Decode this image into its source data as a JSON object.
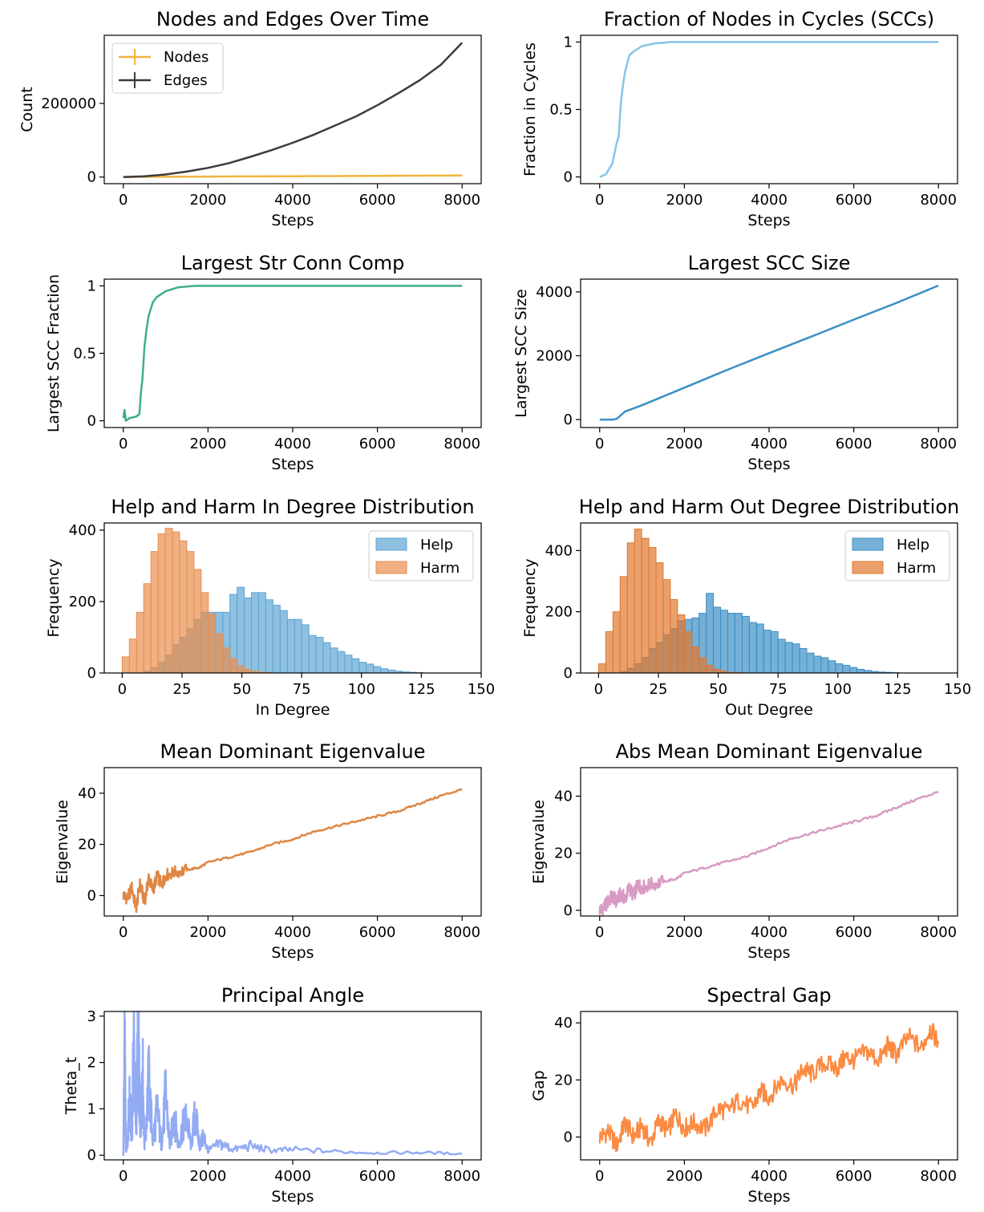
{
  "chart_data": [
    {
      "id": "nodes_edges",
      "type": "line",
      "title": "Nodes and Edges Over Time",
      "xlabel": "Steps",
      "ylabel": "Count",
      "xlim": [
        -450,
        8450
      ],
      "ylim": [
        -18000,
        385000
      ],
      "xticks": [
        0,
        2000,
        4000,
        6000,
        8000
      ],
      "yticks": [
        0,
        200000
      ],
      "legend": "upper-left",
      "series": [
        {
          "name": "Nodes",
          "color": "#f0b43c",
          "x": [
            0,
            1000,
            2000,
            3000,
            4000,
            5000,
            6000,
            7000,
            8000
          ],
          "y": [
            200,
            800,
            1300,
            1800,
            2300,
            2800,
            3300,
            3800,
            4300
          ]
        },
        {
          "name": "Edges",
          "color": "#3c3c3c",
          "x": [
            0,
            500,
            1000,
            1500,
            2000,
            2500,
            3000,
            3500,
            4000,
            4500,
            5000,
            5500,
            6000,
            6500,
            7000,
            7500,
            8000
          ],
          "y": [
            0,
            2000,
            7000,
            15000,
            25000,
            38000,
            55000,
            73000,
            93000,
            115000,
            140000,
            165000,
            195000,
            228000,
            263000,
            305000,
            365000
          ]
        }
      ]
    },
    {
      "id": "frac_cycles",
      "type": "line",
      "title": "Fraction of Nodes in Cycles (SCCs)",
      "xlabel": "Steps",
      "ylabel": "Fraction in Cycles",
      "xlim": [
        -450,
        8450
      ],
      "ylim": [
        -0.05,
        1.05
      ],
      "xticks": [
        0,
        2000,
        4000,
        6000,
        8000
      ],
      "yticks": [
        0.0,
        0.5,
        1.0
      ],
      "series": [
        {
          "name": "",
          "color": "#87c5e8",
          "x": [
            0,
            150,
            300,
            400,
            450,
            500,
            550,
            600,
            700,
            800,
            1000,
            1300,
            1700,
            2000,
            8000
          ],
          "y": [
            0,
            0.02,
            0.1,
            0.25,
            0.3,
            0.55,
            0.68,
            0.78,
            0.9,
            0.93,
            0.97,
            0.99,
            1.0,
            1.0,
            1.0
          ]
        }
      ]
    },
    {
      "id": "largest_scc_frac",
      "type": "line",
      "title": "Largest Str Conn Comp",
      "xlabel": "Steps",
      "ylabel": "Largest SCC Fraction",
      "xlim": [
        -450,
        8450
      ],
      "ylim": [
        -0.05,
        1.05
      ],
      "xticks": [
        0,
        2000,
        4000,
        6000,
        8000
      ],
      "yticks": [
        0.0,
        0.5,
        1.0
      ],
      "series": [
        {
          "name": "",
          "color": "#3fad8e",
          "x": [
            0,
            30,
            60,
            150,
            300,
            380,
            420,
            450,
            500,
            550,
            600,
            700,
            800,
            1000,
            1300,
            1700,
            2000,
            8000
          ],
          "y": [
            0.02,
            0.08,
            0.0,
            0.02,
            0.03,
            0.05,
            0.22,
            0.3,
            0.55,
            0.68,
            0.78,
            0.88,
            0.92,
            0.96,
            0.99,
            1.0,
            1.0,
            1.0
          ]
        }
      ]
    },
    {
      "id": "largest_scc_size",
      "type": "line",
      "title": "Largest SCC Size",
      "xlabel": "Steps",
      "ylabel": "Largest SCC Size",
      "xlim": [
        -450,
        8450
      ],
      "ylim": [
        -250,
        4400
      ],
      "xticks": [
        0,
        2000,
        4000,
        6000,
        8000
      ],
      "yticks": [
        0,
        2000,
        4000
      ],
      "series": [
        {
          "name": "",
          "color": "#3a8fc4",
          "x": [
            0,
            300,
            400,
            600,
            1000,
            2000,
            3000,
            4000,
            5000,
            6000,
            7000,
            8000
          ],
          "y": [
            0,
            0,
            20,
            250,
            450,
            1000,
            1550,
            2080,
            2600,
            3130,
            3650,
            4200
          ]
        }
      ]
    },
    {
      "id": "in_degree",
      "type": "bar",
      "title": "Help and Harm In Degree Distribution",
      "xlabel": "In Degree",
      "ylabel": "Frequency",
      "xlim": [
        -7.5,
        150
      ],
      "ylim": [
        0,
        420
      ],
      "xticks": [
        0,
        25,
        50,
        75,
        100,
        125,
        150
      ],
      "yticks": [
        0,
        200,
        400
      ],
      "legend": "upper-right",
      "bin_width": 3,
      "bin_start": 0,
      "series": [
        {
          "name": "Help",
          "color": "#5ea5d3",
          "values": [
            0,
            0,
            0,
            5,
            15,
            30,
            50,
            80,
            100,
            125,
            150,
            170,
            170,
            170,
            170,
            220,
            240,
            210,
            225,
            225,
            205,
            190,
            175,
            150,
            150,
            135,
            105,
            100,
            85,
            70,
            60,
            50,
            40,
            30,
            25,
            18,
            12,
            8,
            5,
            3,
            2,
            1,
            0,
            0,
            0,
            0,
            0,
            0,
            0,
            0
          ]
        },
        {
          "name": "Harm",
          "color": "#e88e4f",
          "values": [
            45,
            95,
            170,
            250,
            340,
            390,
            405,
            395,
            370,
            340,
            290,
            225,
            165,
            110,
            70,
            40,
            20,
            10,
            5,
            2,
            1,
            0,
            0,
            0,
            0,
            0,
            0,
            0,
            0,
            0,
            0,
            0,
            0,
            0,
            0,
            0,
            0,
            0,
            0,
            0,
            0,
            0,
            0,
            0,
            0,
            0,
            0,
            0,
            0,
            0
          ]
        }
      ]
    },
    {
      "id": "out_degree",
      "type": "bar",
      "title": "Help and Harm Out Degree Distribution",
      "xlabel": "Out Degree",
      "ylabel": "Frequency",
      "xlim": [
        -7.5,
        150
      ],
      "ylim": [
        0,
        490
      ],
      "xticks": [
        0,
        25,
        50,
        75,
        100,
        125,
        150
      ],
      "yticks": [
        0,
        200,
        400
      ],
      "legend": "upper-right",
      "bin_width": 3,
      "bin_start": 0,
      "series": [
        {
          "name": "Help",
          "color": "#3a8fc4",
          "values": [
            0,
            0,
            0,
            5,
            15,
            30,
            50,
            80,
            100,
            125,
            145,
            170,
            175,
            180,
            195,
            260,
            215,
            205,
            195,
            195,
            185,
            165,
            160,
            140,
            135,
            110,
            100,
            95,
            80,
            65,
            55,
            50,
            40,
            30,
            25,
            18,
            12,
            8,
            5,
            3,
            2,
            1,
            0,
            0,
            0,
            0,
            0,
            0,
            0,
            0
          ]
        },
        {
          "name": "Harm",
          "color": "#e0782e",
          "values": [
            30,
            135,
            200,
            315,
            425,
            470,
            440,
            410,
            360,
            305,
            240,
            190,
            135,
            85,
            50,
            25,
            12,
            5,
            2,
            1,
            0,
            0,
            0,
            0,
            0,
            0,
            0,
            0,
            0,
            0,
            0,
            0,
            0,
            0,
            0,
            0,
            0,
            0,
            0,
            0,
            0,
            0,
            0,
            0,
            0,
            0,
            0,
            0,
            0,
            0
          ]
        }
      ]
    },
    {
      "id": "mean_eig",
      "type": "line",
      "title": "Mean Dominant Eigenvalue",
      "xlabel": "Steps",
      "ylabel": "Eigenvalue",
      "xlim": [
        -450,
        8450
      ],
      "ylim": [
        -8,
        50
      ],
      "xticks": [
        0,
        2000,
        4000,
        6000,
        8000
      ],
      "yticks": [
        0,
        20,
        40
      ],
      "series": [
        {
          "name": "",
          "color": "#de8744",
          "x": [
            0,
            100,
            200,
            300,
            400,
            500,
            600,
            700,
            800,
            900,
            1000,
            1200,
            1500,
            1800,
            2000,
            2500,
            3000,
            3500,
            4000,
            4500,
            5000,
            5500,
            6000,
            6500,
            7000,
            7500,
            8000
          ],
          "y": [
            0,
            -1,
            3,
            -5,
            5,
            -3,
            7,
            2,
            8,
            4,
            8,
            9,
            10,
            11,
            13,
            15,
            17,
            20,
            22,
            25,
            27,
            29,
            31,
            33,
            36,
            39,
            41.5
          ]
        }
      ]
    },
    {
      "id": "abs_mean_eig",
      "type": "line",
      "title": "Abs Mean Dominant Eigenvalue",
      "xlabel": "Steps",
      "ylabel": "Eigenvalue",
      "xlim": [
        -450,
        8450
      ],
      "ylim": [
        -2,
        50
      ],
      "xticks": [
        0,
        2000,
        4000,
        6000,
        8000
      ],
      "yticks": [
        0,
        20,
        40
      ],
      "series": [
        {
          "name": "",
          "color": "#d89bc4",
          "x": [
            0,
            100,
            200,
            300,
            400,
            500,
            600,
            700,
            800,
            900,
            1000,
            1200,
            1500,
            1800,
            2000,
            2500,
            3000,
            3500,
            4000,
            4500,
            5000,
            5500,
            6000,
            6500,
            7000,
            7500,
            8000
          ],
          "y": [
            0,
            1,
            3,
            5,
            3,
            6,
            4,
            8,
            5,
            9,
            8,
            9,
            10,
            11,
            13,
            15,
            17,
            19,
            22,
            25,
            27,
            29,
            31,
            33,
            36,
            39,
            41.5
          ]
        }
      ]
    },
    {
      "id": "principal_angle",
      "type": "line",
      "title": "Principal Angle",
      "xlabel": "Steps",
      "ylabel": "Theta_t",
      "xlim": [
        -450,
        8450
      ],
      "ylim": [
        -0.1,
        3.1
      ],
      "xticks": [
        0,
        2000,
        4000,
        6000,
        8000
      ],
      "yticks": [
        0,
        1,
        2,
        3
      ],
      "series": [
        {
          "name": "",
          "color": "#93abf3",
          "x": [
            0,
            30,
            60,
            100,
            150,
            200,
            250,
            300,
            350,
            400,
            450,
            500,
            600,
            700,
            800,
            900,
            1000,
            1100,
            1200,
            1300,
            1400,
            1500,
            1600,
            1700,
            1800,
            1900,
            2000,
            2300,
            2600,
            3000,
            3500,
            4000,
            5000,
            6000,
            7000,
            8000
          ],
          "y": [
            0,
            2.55,
            0.1,
            0.3,
            1.2,
            0.4,
            2.4,
            0.5,
            2.85,
            0.3,
            2.0,
            0.2,
            1.6,
            0.3,
            1.0,
            0.2,
            1.3,
            0.2,
            0.9,
            0.2,
            0.6,
            0.8,
            0.2,
            0.9,
            0.2,
            0.4,
            0.1,
            0.25,
            0.12,
            0.2,
            0.1,
            0.12,
            0.08,
            0.05,
            0.06,
            0.03
          ]
        }
      ]
    },
    {
      "id": "spectral_gap",
      "type": "line",
      "title": "Spectral Gap",
      "xlabel": "Steps",
      "ylabel": "Gap",
      "xlim": [
        -450,
        8450
      ],
      "ylim": [
        -8,
        44
      ],
      "xticks": [
        0,
        2000,
        4000,
        6000,
        8000
      ],
      "yticks": [
        0,
        20,
        40
      ],
      "series": [
        {
          "name": "",
          "color": "#fb8a42",
          "x": [
            0,
            200,
            400,
            600,
            800,
            1000,
            1200,
            1400,
            1600,
            1800,
            2000,
            2200,
            2500,
            2800,
            3000,
            3300,
            3600,
            3800,
            4000,
            4300,
            4600,
            4800,
            5000,
            5300,
            5600,
            5800,
            6000,
            6300,
            6600,
            6800,
            7000,
            7300,
            7600,
            7800,
            8000
          ],
          "y": [
            0,
            2,
            -3,
            5,
            0,
            4,
            -2,
            6,
            2,
            8,
            3,
            5,
            3,
            10,
            9,
            13,
            10,
            16,
            14,
            20,
            18,
            24,
            22,
            26,
            24,
            28,
            27,
            30,
            27,
            32,
            29,
            35,
            31,
            38,
            33
          ]
        }
      ]
    }
  ]
}
